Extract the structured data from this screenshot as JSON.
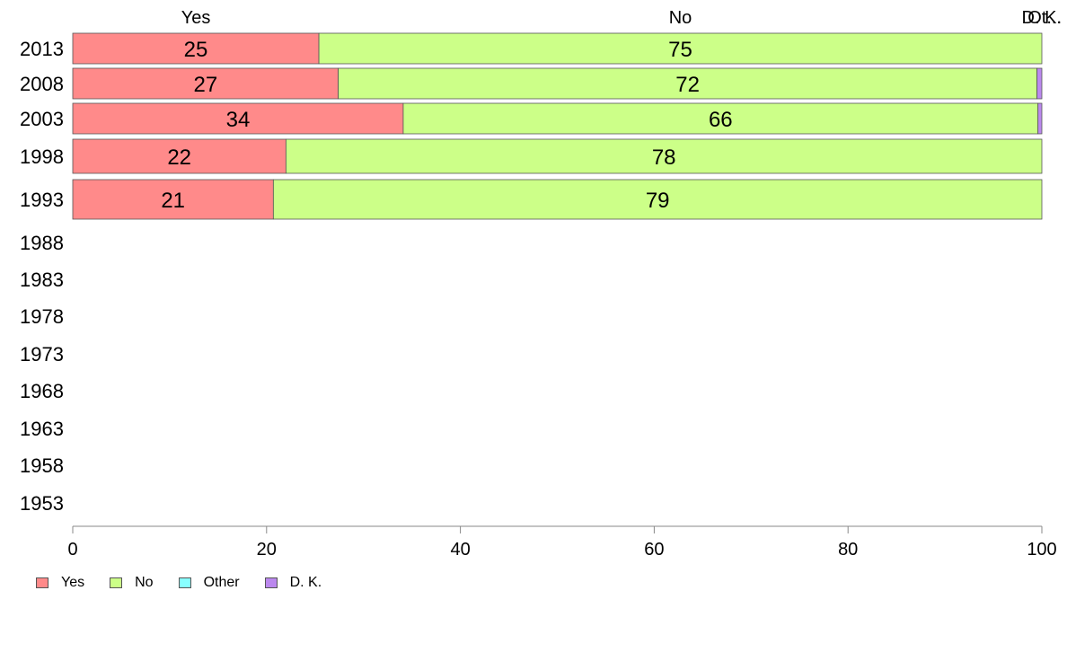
{
  "chart_data": {
    "type": "bar",
    "orientation": "horizontal",
    "stacked": true,
    "categories": [
      "2013",
      "2008",
      "2003",
      "1998",
      "1993",
      "1988",
      "1983",
      "1978",
      "1973",
      "1968",
      "1963",
      "1958",
      "1953"
    ],
    "series": [
      {
        "name": "Yes",
        "color": "#ff8a8a",
        "values": [
          25.4,
          27.4,
          34.1,
          22.0,
          20.7,
          null,
          null,
          null,
          null,
          null,
          null,
          null,
          null
        ]
      },
      {
        "name": "No",
        "color": "#ccff88",
        "values": [
          74.6,
          72.1,
          65.5,
          78.0,
          79.3,
          null,
          null,
          null,
          null,
          null,
          null,
          null,
          null
        ]
      },
      {
        "name": "Other",
        "color": "#88ffff",
        "values": [
          0,
          0,
          0,
          0,
          0,
          null,
          null,
          null,
          null,
          null,
          null,
          null,
          null
        ]
      },
      {
        "name": "D. K.",
        "color": "#bb88ee",
        "values": [
          0,
          0.5,
          0.4,
          0,
          0,
          null,
          null,
          null,
          null,
          null,
          null,
          null,
          null
        ]
      }
    ],
    "data_labels": [
      {
        "yes": "25",
        "no": "75"
      },
      {
        "yes": "27",
        "no": "72"
      },
      {
        "yes": "34",
        "no": "66"
      },
      {
        "yes": "22",
        "no": "78"
      },
      {
        "yes": "21",
        "no": "79"
      }
    ],
    "top_labels": [
      "Yes",
      "No",
      "D. K.",
      "Ot..."
    ],
    "xlim": [
      0,
      100
    ],
    "xticks": [
      "0",
      "20",
      "40",
      "60",
      "80",
      "100"
    ],
    "grid": false,
    "legend": {
      "position": "bottom-left",
      "entries": [
        "Yes",
        "No",
        "Other",
        "D. K."
      ]
    }
  }
}
